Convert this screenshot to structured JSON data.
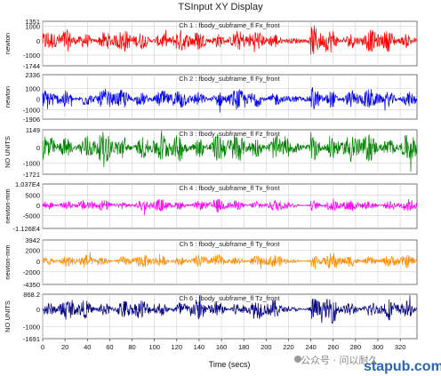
{
  "window_title": "TSInput XY Display",
  "xlabel": "Time (secs)",
  "watermark": {
    "brand": "公众号 · 问以耐久",
    "site": "stapub.com"
  },
  "chart_data": [
    {
      "type": "line",
      "title": "Ch 1 : fbody_subframe_fl Fx_front",
      "ylabel": "newton",
      "color": "#ff0000",
      "ytick_labels": [
        "1351",
        "1000",
        "0",
        "-1000",
        "-1744"
      ],
      "ylim": [
        -1744,
        1351
      ],
      "xlim": [
        0,
        335
      ],
      "amplitude": 0.55,
      "grid": true
    },
    {
      "type": "line",
      "title": "Ch 2 : fbody_subframe_fl Fy_front",
      "ylabel": "newton",
      "color": "#0000ee",
      "ytick_labels": [
        "2336",
        "1000",
        "0",
        "-1000",
        "-1906"
      ],
      "ylim": [
        -1906,
        2336
      ],
      "xlim": [
        0,
        335
      ],
      "amplitude": 0.5,
      "grid": true
    },
    {
      "type": "line",
      "title": "Ch 3 : fbody_subframe_fl Fz_front",
      "ylabel": "NO UNITS",
      "color": "#008000",
      "ytick_labels": [
        "1149",
        "0",
        "-1000",
        "-1721"
      ],
      "ylim": [
        -1721,
        1149
      ],
      "xlim": [
        0,
        335
      ],
      "amplitude": 0.75,
      "grid": true
    },
    {
      "type": "line",
      "title": "Ch 4 : fbody_subframe_fl Tx_front",
      "ylabel": "newton-mm",
      "color": "#ff00ff",
      "ytick_labels": [
        "1.037E4",
        "5000",
        "0",
        "-5000",
        "-1.126E4"
      ],
      "ylim": [
        -11260,
        10370
      ],
      "xlim": [
        0,
        335
      ],
      "amplitude": 0.3,
      "grid": true
    },
    {
      "type": "line",
      "title": "Ch 5 : fbody_subframe_fl Ty_front",
      "ylabel": "newton-mm",
      "color": "#ff8c00",
      "ytick_labels": [
        "3942",
        "2000",
        "0",
        "-2000",
        "-4350"
      ],
      "ylim": [
        -4350,
        3942
      ],
      "xlim": [
        0,
        335
      ],
      "amplitude": 0.32,
      "grid": true
    },
    {
      "type": "line",
      "title": "Ch 6 : fbody_subframe_fl Tz_front",
      "ylabel": "NO UNITS",
      "color": "#000080",
      "ytick_labels": [
        "868.2",
        "0",
        "-1000",
        "-1691"
      ],
      "ylim": [
        -1691,
        868.2
      ],
      "xlim": [
        0,
        335
      ],
      "amplitude": 0.5,
      "grid": true
    }
  ],
  "x_ticks": [
    "0",
    "20",
    "40",
    "60",
    "80",
    "100",
    "120",
    "140",
    "160",
    "180",
    "200",
    "220",
    "240",
    "260",
    "280",
    "300",
    "320"
  ]
}
